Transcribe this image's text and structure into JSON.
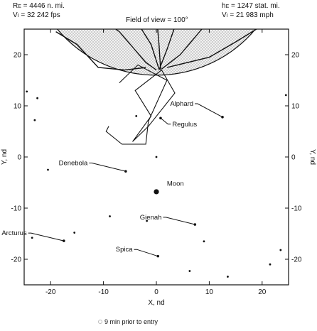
{
  "header": {
    "left_line1": "R",
    "left_line1_sub": "E",
    "left_line1_rest": " = 4446 n. mi.",
    "left_line2": "V",
    "left_line2_sub": "I",
    "left_line2_rest": " = 32 242 fps",
    "right_line1": "h",
    "right_line1_sub": "E",
    "right_line1_rest": " = 1247 stat. mi.",
    "right_line2": "V",
    "right_line2_sub": "I",
    "right_line2_rest": " = 21 983 mph",
    "center": "Field of view = 100°"
  },
  "caption": "9 min prior to entry",
  "chart_data": {
    "type": "scatter",
    "xlabel": "X, nd",
    "ylabel": "Y, nd",
    "xlim": [
      -25,
      25
    ],
    "ylim": [
      -25,
      25
    ],
    "xticks": [
      -20,
      -10,
      0,
      10,
      20
    ],
    "yticks": [
      -20,
      -10,
      0,
      10,
      20
    ],
    "xtick_labels": [
      "-20",
      "-10",
      "0",
      "10",
      "20"
    ],
    "ytick_labels": [
      "-20",
      "-10",
      "0",
      "10",
      "20"
    ],
    "grid": false,
    "earth_disk": {
      "center": [
        0,
        40
      ],
      "radius": 24
    },
    "named_stars": [
      {
        "name": "Alphard",
        "x": 12.5,
        "y": 7.8,
        "label_anchor": [
          7.0,
          10.0
        ]
      },
      {
        "name": "Regulus",
        "x": 0.8,
        "y": 7.6,
        "label_anchor": [
          3.0,
          6.0
        ]
      },
      {
        "name": "Denebola",
        "x": -5.8,
        "y": -2.8,
        "label_anchor": [
          -13.0,
          -1.6
        ]
      },
      {
        "name": "Moon",
        "x": 0.0,
        "y": -6.8,
        "label_anchor": [
          2.0,
          -5.6
        ]
      },
      {
        "name": "Gienah",
        "x": 7.3,
        "y": -13.2,
        "label_anchor": [
          1.0,
          -12.2
        ]
      },
      {
        "name": "Arcturus",
        "x": -17.5,
        "y": -16.4,
        "label_anchor": [
          -24.5,
          -15.3
        ]
      },
      {
        "name": "Spica",
        "x": 0.3,
        "y": -19.4,
        "label_anchor": [
          -4.5,
          -18.5
        ]
      }
    ],
    "other_stars": [
      [
        -24.5,
        12.8
      ],
      [
        -22.5,
        11.5
      ],
      [
        -23.0,
        7.2
      ],
      [
        -20.5,
        -2.5
      ],
      [
        -15.5,
        -14.8
      ],
      [
        -23.5,
        -15.8
      ],
      [
        -8.8,
        -11.6
      ],
      [
        -1.8,
        -12.5
      ],
      [
        -3.8,
        8.0
      ],
      [
        0.0,
        0.0
      ],
      [
        9.0,
        -16.5
      ],
      [
        6.3,
        -22.3
      ],
      [
        13.5,
        -23.4
      ],
      [
        21.5,
        -21.0
      ],
      [
        23.5,
        -18.2
      ],
      [
        24.5,
        12.1
      ]
    ],
    "paths": [
      {
        "name": "outer",
        "points": [
          [
            -7,
            14.5
          ],
          [
            -3.5,
            18
          ],
          [
            2,
            15
          ],
          [
            -1.5,
            7
          ],
          [
            -2,
            2.5
          ],
          [
            -6.5,
            2.5
          ],
          [
            -9.5,
            5
          ],
          [
            -9,
            6
          ]
        ]
      },
      {
        "name": "inner",
        "points": [
          [
            -4.5,
            3
          ],
          [
            -1.5,
            6
          ],
          [
            3.5,
            12.5
          ],
          [
            1.0,
            17
          ],
          [
            -4,
            13
          ],
          [
            -1.0,
            8
          ],
          [
            -4.5,
            3
          ]
        ]
      }
    ],
    "terminator_arcs": [
      {
        "pts": [
          [
            -19,
            24.5
          ],
          [
            -15,
            22
          ],
          [
            -11,
            17.5
          ],
          [
            -6,
            17
          ],
          [
            -2,
            17.5
          ]
        ]
      },
      {
        "pts": [
          [
            -16,
            30
          ],
          [
            -11,
            27.5
          ],
          [
            -7,
            24.5
          ],
          [
            -2,
            18.5
          ],
          [
            0,
            17
          ]
        ]
      },
      {
        "pts": [
          [
            -9.5,
            33
          ],
          [
            -4,
            27
          ],
          [
            -1,
            22
          ],
          [
            0.5,
            17.2
          ]
        ]
      },
      {
        "pts": [
          [
            -1,
            34
          ],
          [
            0,
            28
          ],
          [
            0.5,
            22
          ],
          [
            0.8,
            17
          ]
        ]
      },
      {
        "pts": [
          [
            7,
            33
          ],
          [
            4,
            27
          ],
          [
            2,
            21
          ],
          [
            0.5,
            17
          ]
        ]
      },
      {
        "pts": [
          [
            14,
            31
          ],
          [
            9,
            25.5
          ],
          [
            4.5,
            20
          ],
          [
            1,
            17.2
          ]
        ]
      },
      {
        "pts": [
          [
            20.5,
            26
          ],
          [
            15,
            22.5
          ],
          [
            10,
            19.5
          ],
          [
            2,
            17.5
          ]
        ]
      }
    ]
  }
}
